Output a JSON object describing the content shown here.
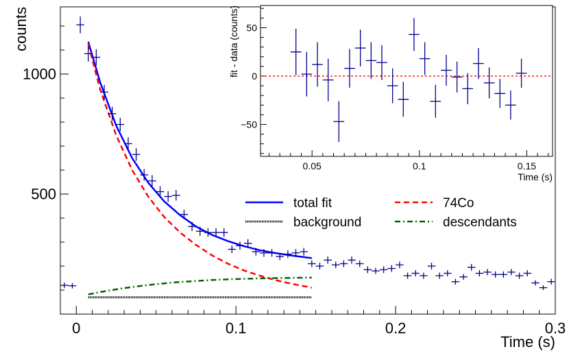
{
  "chart_data": [
    {
      "type": "scatter",
      "role": "main",
      "xlabel": "Time (s)",
      "ylabel": "counts",
      "xlim": [
        -0.01,
        0.3
      ],
      "ylim": [
        0,
        1280
      ],
      "xticks": [
        0,
        0.1,
        0.2,
        0.3
      ],
      "xtick_labels": [
        "0",
        "0.1",
        "0.2",
        "0.3"
      ],
      "yticks": [
        500,
        1000
      ],
      "ytick_labels": [
        "500",
        "1000"
      ],
      "grid": false,
      "legend": {
        "placement": "center-right",
        "entries": [
          {
            "label": "total fit",
            "color": "#0000ff",
            "style": "solid"
          },
          {
            "label": "74Co",
            "color": "#ff0000",
            "style": "dashed"
          },
          {
            "label": "background",
            "color": "#000000",
            "style": "dotted"
          },
          {
            "label": "descendants",
            "color": "#006400",
            "style": "dashdot"
          }
        ]
      },
      "data_points": {
        "color": "#00008b",
        "bin_width": 0.005,
        "x": [
          -0.0075,
          -0.0025,
          0.0025,
          0.0075,
          0.0125,
          0.0175,
          0.0225,
          0.0275,
          0.0325,
          0.0375,
          0.0425,
          0.0475,
          0.0525,
          0.0575,
          0.0625,
          0.0675,
          0.0725,
          0.0775,
          0.0825,
          0.0875,
          0.0925,
          0.0975,
          0.1025,
          0.1075,
          0.1125,
          0.1175,
          0.1225,
          0.1275,
          0.1325,
          0.1375,
          0.1425,
          0.1475,
          0.1525,
          0.1575,
          0.1625,
          0.1675,
          0.1725,
          0.1775,
          0.1825,
          0.1875,
          0.1925,
          0.1975,
          0.2025,
          0.2075,
          0.2125,
          0.2175,
          0.2225,
          0.2275,
          0.2325,
          0.2375,
          0.2425,
          0.2475,
          0.2525,
          0.2575,
          0.2625,
          0.2675,
          0.2725,
          0.2775,
          0.2825,
          0.2875,
          0.2925,
          0.2975
        ],
        "y": [
          120,
          118,
          1205,
          1085,
          1070,
          925,
          835,
          790,
          710,
          665,
          580,
          555,
          510,
          490,
          495,
          415,
          365,
          345,
          340,
          340,
          340,
          270,
          285,
          295,
          260,
          255,
          255,
          240,
          250,
          255,
          260,
          210,
          200,
          225,
          205,
          210,
          225,
          210,
          185,
          180,
          185,
          190,
          205,
          160,
          170,
          160,
          200,
          160,
          170,
          135,
          155,
          195,
          170,
          175,
          165,
          165,
          175,
          160,
          170,
          130,
          110,
          135
        ],
        "yerr": [
          11,
          11,
          35,
          33,
          33,
          30,
          29,
          28,
          27,
          26,
          24,
          24,
          23,
          22,
          22,
          20,
          19,
          19,
          18,
          18,
          18,
          16,
          17,
          17,
          16,
          16,
          16,
          15,
          16,
          16,
          16,
          14,
          14,
          15,
          14,
          14,
          15,
          14,
          14,
          13,
          14,
          14,
          14,
          13,
          13,
          13,
          14,
          13,
          13,
          12,
          12,
          14,
          13,
          13,
          13,
          13,
          13,
          13,
          13,
          11,
          10,
          12
        ]
      },
      "curves": [
        {
          "name": "total fit",
          "color": "#0000ff",
          "style": "solid",
          "x": [
            0.0075,
            0.015,
            0.025,
            0.035,
            0.045,
            0.055,
            0.065,
            0.075,
            0.085,
            0.095,
            0.105,
            0.115,
            0.125,
            0.135,
            0.1475
          ],
          "y": [
            1135,
            965,
            785,
            650,
            548,
            470,
            412,
            365,
            330,
            304,
            283,
            266,
            254,
            244,
            233
          ]
        },
        {
          "name": "74Co",
          "color": "#ff0000",
          "style": "dashed",
          "x": [
            0.0075,
            0.015,
            0.025,
            0.035,
            0.045,
            0.055,
            0.065,
            0.075,
            0.085,
            0.095,
            0.105,
            0.115,
            0.125,
            0.135,
            0.1475
          ],
          "y": [
            1125,
            935,
            745,
            600,
            490,
            405,
            340,
            288,
            245,
            210,
            182,
            160,
            141,
            126,
            110
          ]
        },
        {
          "name": "background",
          "color": "#000000",
          "style": "dotted",
          "x": [
            0.0075,
            0.1475
          ],
          "y": [
            70,
            70
          ]
        },
        {
          "name": "descendants",
          "color": "#006400",
          "style": "dashdot",
          "x": [
            0.0075,
            0.015,
            0.025,
            0.035,
            0.045,
            0.055,
            0.065,
            0.075,
            0.085,
            0.095,
            0.105,
            0.115,
            0.125,
            0.135,
            0.1475
          ],
          "y": [
            82,
            92,
            103,
            113,
            121,
            128,
            134,
            138,
            142,
            145,
            147,
            149,
            150,
            151,
            152
          ]
        }
      ]
    },
    {
      "type": "scatter",
      "role": "inset",
      "xlabel": "Time (s)",
      "ylabel": "fit - data (counts)",
      "xlim": [
        0.026,
        0.162
      ],
      "ylim": [
        -83,
        73
      ],
      "xticks": [
        0.05,
        0.1,
        0.15
      ],
      "xtick_labels": [
        "0.05",
        "0.1",
        "0.15"
      ],
      "yticks": [
        -50,
        0,
        50
      ],
      "ytick_labels": [
        "−50",
        "0",
        "50"
      ],
      "reference_line": {
        "y": 0,
        "color": "#ff0000",
        "style": "dotted"
      },
      "data_points": {
        "color": "#00008b",
        "bin_width": 0.005,
        "x": [
          0.0425,
          0.0475,
          0.0525,
          0.0575,
          0.0625,
          0.0675,
          0.0725,
          0.0775,
          0.0825,
          0.0875,
          0.0925,
          0.0975,
          0.1025,
          0.1075,
          0.1125,
          0.1175,
          0.1225,
          0.1275,
          0.1325,
          0.1375,
          0.1425,
          0.1475
        ],
        "y": [
          25,
          2,
          12,
          -4,
          -47,
          8,
          29,
          16,
          14,
          -10,
          -24,
          43,
          18,
          -26,
          6,
          -1,
          -13,
          13,
          -7,
          -18,
          -30,
          3
        ],
        "yerr": [
          24,
          23,
          23,
          22,
          21,
          20,
          19,
          19,
          18,
          18,
          18,
          17,
          17,
          17,
          16,
          16,
          16,
          16,
          16,
          15,
          15,
          15
        ]
      }
    }
  ]
}
